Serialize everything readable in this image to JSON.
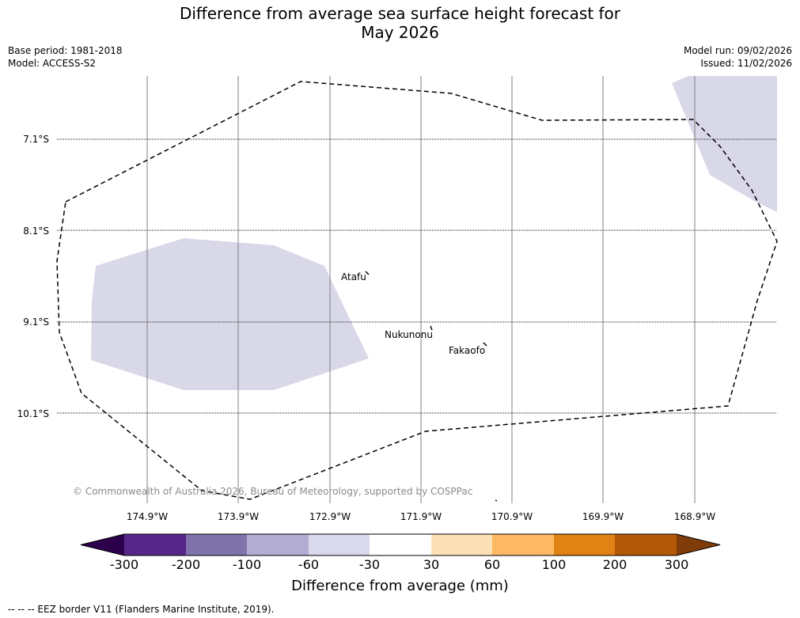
{
  "title_line1": "Difference from average sea surface height forecast for",
  "title_line2": "May 2026",
  "meta_left": {
    "base_period": "Base period: 1981-2018",
    "model": "Model: ACCESS-S2"
  },
  "meta_right": {
    "model_run": "Model run: 09/02/2026",
    "issued": "Issued: 11/02/2026"
  },
  "map": {
    "lat_labels": [
      "7.1°S",
      "8.1°S",
      "9.1°S",
      "10.1°S"
    ],
    "lon_labels": [
      "174.9°W",
      "173.9°W",
      "172.9°W",
      "171.9°W",
      "170.9°W",
      "169.9°W",
      "168.9°W"
    ],
    "places": [
      "Atafu",
      "Nukunonu",
      "Fakaofo"
    ],
    "copyright": "© Commonwealth of Australia 2026, Bureau of Meteorology, supported by COSPPac",
    "anomaly_fill_color": "#d8d8e9",
    "anomaly_category_mm": "-60 to -30",
    "eez_color": "#000000"
  },
  "colorbar": {
    "ticks": [
      "-300",
      "-200",
      "-100",
      "-60",
      "-30",
      "30",
      "60",
      "100",
      "200",
      "300"
    ],
    "colors": [
      "#2d004b",
      "#542788",
      "#8073ac",
      "#b2abd2",
      "#d8daeb",
      "#ffffff",
      "#fee0b6",
      "#fdb863",
      "#e08214",
      "#b35806",
      "#7f3b08"
    ],
    "label": "Difference from average (mm)"
  },
  "footnote": "--  --  -- EEZ border V11 (Flanders Marine Institute, 2019)."
}
